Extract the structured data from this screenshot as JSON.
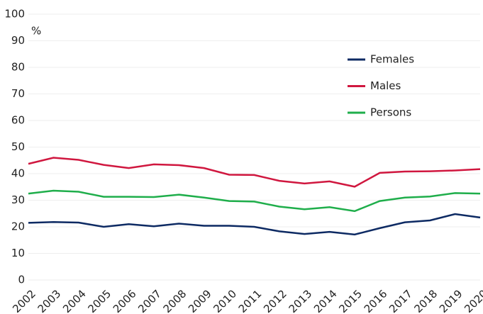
{
  "chart_data": {
    "type": "line",
    "y_unit": "%",
    "categories": [
      "2002",
      "2003",
      "2004",
      "2005",
      "2006",
      "2007",
      "2008",
      "2009",
      "2010",
      "2011",
      "2012",
      "2013",
      "2014",
      "2015",
      "2016",
      "2017",
      "2018",
      "2019",
      "2020"
    ],
    "series": [
      {
        "name": "Females",
        "color": "#0d2a63",
        "values": [
          21.5,
          21.8,
          21.6,
          20.0,
          21.0,
          20.2,
          21.2,
          20.4,
          20.4,
          20.0,
          18.3,
          17.3,
          18.1,
          17.1,
          19.5,
          21.7,
          22.4,
          24.8,
          23.5
        ]
      },
      {
        "name": "Males",
        "color": "#d0173f",
        "values": [
          43.7,
          46.0,
          45.2,
          43.3,
          42.1,
          43.5,
          43.2,
          42.1,
          39.6,
          39.5,
          37.3,
          36.3,
          37.1,
          35.1,
          40.3,
          40.8,
          40.9,
          41.2,
          41.7
        ]
      },
      {
        "name": "Persons",
        "color": "#1fae4b",
        "values": [
          32.5,
          33.6,
          33.2,
          31.3,
          31.3,
          31.2,
          32.1,
          31.0,
          29.7,
          29.5,
          27.6,
          26.6,
          27.4,
          25.9,
          29.7,
          31.0,
          31.4,
          32.7,
          32.5
        ]
      }
    ],
    "ylim": [
      0,
      100
    ],
    "yticks": [
      0,
      10,
      20,
      30,
      40,
      50,
      60,
      70,
      80,
      90,
      100
    ],
    "grid": true,
    "legend": "top-right"
  }
}
